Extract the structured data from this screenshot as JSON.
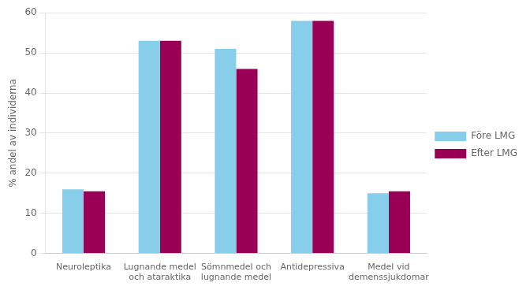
{
  "chart_data": {
    "type": "bar",
    "categories": [
      "Neuroleptika",
      "Lugnande medel\noch ataraktika",
      "Sömnmedel och\nlugnande medel",
      "Antidepressiva",
      "Medel vid\ndemenssjukdomar"
    ],
    "series": [
      {
        "name": "Före LMG",
        "color": "#87CEEB",
        "values": [
          16,
          53,
          51,
          58,
          15
        ]
      },
      {
        "name": "Efter LMG",
        "color": "#990055",
        "values": [
          15.5,
          53,
          46,
          58,
          15.5
        ]
      }
    ],
    "ylabel": "% andel av individerna",
    "ylim": [
      0,
      60
    ],
    "yticks": [
      0,
      10,
      20,
      30,
      40,
      50,
      60
    ],
    "grid": true,
    "legend": "right"
  }
}
